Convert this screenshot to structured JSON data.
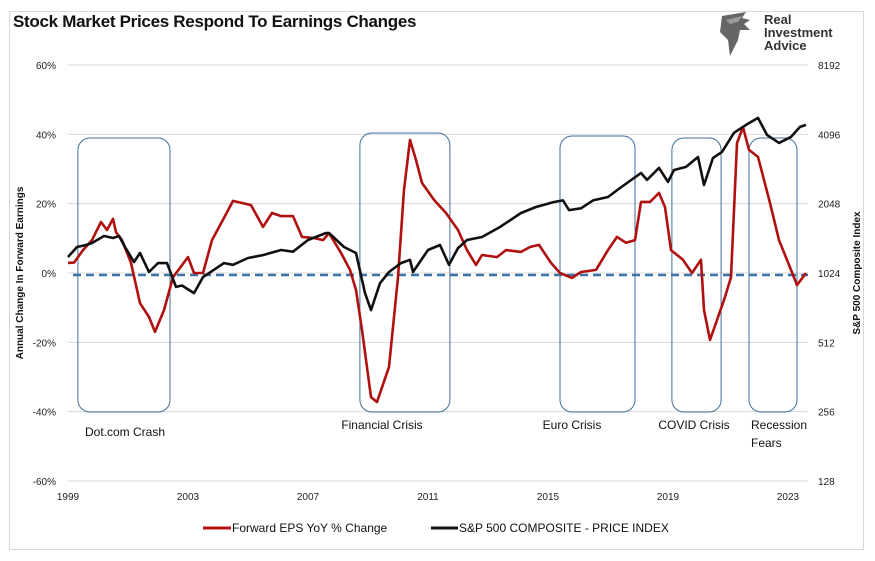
{
  "chart_data": {
    "type": "line",
    "title": "Stock Market Prices Respond To Earnings Changes",
    "ylabel_left": "Annual Change In Forward Earnings",
    "ylabel_right": "S&P 500  Composite Index",
    "xlim": [
      1999,
      2023.67
    ],
    "ylim_left": [
      -60,
      60
    ],
    "ylim_right": [
      128,
      8192
    ],
    "right_axis_scale": "log2",
    "x_ticks": [
      "1999",
      "2003",
      "2007",
      "2011",
      "2015",
      "2019",
      "2023"
    ],
    "y_ticks_left": [
      "60%",
      "40%",
      "20%",
      "0%",
      "-20%",
      "-40%",
      "-60%"
    ],
    "y_ticks_right": [
      "8192",
      "4096",
      "2048",
      "1024",
      "512",
      "256",
      "128"
    ],
    "grid": "horizontal",
    "legend_position": "bottom",
    "zero_line": {
      "value": 0,
      "style": "dashed",
      "color": "#3b72a8"
    },
    "series": [
      {
        "name": "Forward EPS YoY % Change",
        "axis": "left",
        "color": "#b01010",
        "points": [
          [
            1999.0,
            2.9
          ],
          [
            1999.2,
            3
          ],
          [
            1999.5,
            6.6
          ],
          [
            1999.8,
            9.5
          ],
          [
            2000.1,
            14.7
          ],
          [
            2000.3,
            12.4
          ],
          [
            2000.5,
            15.6
          ],
          [
            2000.6,
            11.8
          ],
          [
            2000.8,
            9.5
          ],
          [
            2001.1,
            2.9
          ],
          [
            2001.4,
            -8.7
          ],
          [
            2001.7,
            -12.7
          ],
          [
            2001.9,
            -17
          ],
          [
            2002.2,
            -10.7
          ],
          [
            2002.5,
            -1.2
          ],
          [
            2003.0,
            4.6
          ],
          [
            2003.2,
            0
          ],
          [
            2003.5,
            0
          ],
          [
            2003.8,
            9.5
          ],
          [
            2004.2,
            15.9
          ],
          [
            2004.5,
            20.8
          ],
          [
            2004.8,
            20.2
          ],
          [
            2005.1,
            19.6
          ],
          [
            2005.5,
            13.3
          ],
          [
            2005.8,
            17.3
          ],
          [
            2006.1,
            16.4
          ],
          [
            2006.5,
            16.4
          ],
          [
            2006.8,
            10.4
          ],
          [
            2007.2,
            10.1
          ],
          [
            2007.5,
            9.5
          ],
          [
            2007.7,
            11.5
          ],
          [
            2008.1,
            5.8
          ],
          [
            2008.4,
            0.9
          ],
          [
            2008.6,
            -4.9
          ],
          [
            2008.8,
            -16.4
          ],
          [
            2009.1,
            -35.8
          ],
          [
            2009.3,
            -37.2
          ],
          [
            2009.7,
            -27.1
          ],
          [
            2010.0,
            -1.2
          ],
          [
            2010.2,
            24
          ],
          [
            2010.4,
            38.4
          ],
          [
            2010.6,
            32.6
          ],
          [
            2010.8,
            26
          ],
          [
            2011.2,
            21.1
          ],
          [
            2011.6,
            17.3
          ],
          [
            2012.0,
            12.4
          ],
          [
            2012.3,
            6.6
          ],
          [
            2012.6,
            2.3
          ],
          [
            2012.8,
            5.2
          ],
          [
            2013.3,
            4.6
          ],
          [
            2013.6,
            6.6
          ],
          [
            2014.1,
            6.1
          ],
          [
            2014.4,
            7.5
          ],
          [
            2014.7,
            8.1
          ],
          [
            2015.1,
            2.9
          ],
          [
            2015.4,
            0
          ],
          [
            2015.8,
            -1.4
          ],
          [
            2016.1,
            0.3
          ],
          [
            2016.6,
            0.9
          ],
          [
            2017.0,
            6.6
          ],
          [
            2017.3,
            10.4
          ],
          [
            2017.6,
            8.7
          ],
          [
            2017.9,
            9.5
          ],
          [
            2018.1,
            20.5
          ],
          [
            2018.4,
            20.5
          ],
          [
            2018.7,
            23.1
          ],
          [
            2018.9,
            19
          ],
          [
            2019.1,
            6.6
          ],
          [
            2019.5,
            3.8
          ],
          [
            2019.8,
            0
          ],
          [
            2020.1,
            3.8
          ],
          [
            2020.2,
            -10.7
          ],
          [
            2020.4,
            -19.3
          ],
          [
            2020.6,
            -14.4
          ],
          [
            2020.9,
            -6.9
          ],
          [
            2021.1,
            -1.2
          ],
          [
            2021.3,
            37.5
          ],
          [
            2021.5,
            42.1
          ],
          [
            2021.7,
            35.5
          ],
          [
            2022.0,
            33.5
          ],
          [
            2022.4,
            20.2
          ],
          [
            2022.7,
            9.5
          ],
          [
            2023.1,
            0.9
          ],
          [
            2023.3,
            -3.5
          ],
          [
            2023.6,
            0
          ]
        ]
      },
      {
        "name": "S&P 500 COMPOSITE - PRICE INDEX",
        "axis": "right",
        "color": "#111111",
        "points": [
          [
            1999.0,
            1202
          ],
          [
            1999.3,
            1328
          ],
          [
            1999.6,
            1355
          ],
          [
            1999.8,
            1382
          ],
          [
            2000.2,
            1483
          ],
          [
            2000.5,
            1453
          ],
          [
            2000.7,
            1483
          ],
          [
            2000.9,
            1328
          ],
          [
            2001.2,
            1143
          ],
          [
            2001.4,
            1251
          ],
          [
            2001.7,
            1034
          ],
          [
            2002.0,
            1131
          ],
          [
            2002.3,
            1131
          ],
          [
            2002.6,
            891
          ],
          [
            2002.8,
            904
          ],
          [
            2003.2,
            838
          ],
          [
            2003.5,
            983
          ],
          [
            2004.2,
            1131
          ],
          [
            2004.5,
            1111
          ],
          [
            2005.0,
            1190
          ],
          [
            2005.5,
            1225
          ],
          [
            2006.1,
            1289
          ],
          [
            2006.5,
            1267
          ],
          [
            2007.0,
            1424
          ],
          [
            2007.6,
            1528
          ],
          [
            2007.7,
            1528
          ],
          [
            2008.2,
            1328
          ],
          [
            2008.6,
            1251
          ],
          [
            2008.9,
            838
          ],
          [
            2009.1,
            707
          ],
          [
            2009.4,
            925
          ],
          [
            2009.7,
            1034
          ],
          [
            2010.1,
            1131
          ],
          [
            2010.4,
            1169
          ],
          [
            2010.5,
            1034
          ],
          [
            2011.0,
            1289
          ],
          [
            2011.4,
            1355
          ],
          [
            2011.7,
            1111
          ],
          [
            2012.0,
            1313
          ],
          [
            2012.3,
            1424
          ],
          [
            2012.8,
            1468
          ],
          [
            2013.4,
            1622
          ],
          [
            2014.1,
            1866
          ],
          [
            2014.6,
            1981
          ],
          [
            2015.2,
            2083
          ],
          [
            2015.5,
            2116
          ],
          [
            2015.7,
            1921
          ],
          [
            2016.1,
            1955
          ],
          [
            2016.5,
            2116
          ],
          [
            2017.0,
            2190
          ],
          [
            2017.4,
            2396
          ],
          [
            2018.1,
            2784
          ],
          [
            2018.3,
            2596
          ],
          [
            2018.7,
            2927
          ],
          [
            2019.0,
            2545
          ],
          [
            2019.2,
            2868
          ],
          [
            2019.6,
            2957
          ],
          [
            2020.0,
            3267
          ],
          [
            2020.2,
            2469
          ],
          [
            2020.5,
            3235
          ],
          [
            2020.8,
            3435
          ],
          [
            2021.2,
            4158
          ],
          [
            2021.6,
            4500
          ],
          [
            2022.0,
            4827
          ],
          [
            2022.3,
            4071
          ],
          [
            2022.7,
            3759
          ],
          [
            2023.1,
            3994
          ],
          [
            2023.4,
            4410
          ],
          [
            2023.6,
            4500
          ]
        ]
      }
    ],
    "annotations": [
      {
        "label": "Dot.com Crash",
        "range": [
          1999.33,
          2002.4
        ]
      },
      {
        "label": "Financial Crisis",
        "range": [
          2008.73,
          2011.73
        ]
      },
      {
        "label": "Euro Crisis",
        "range": [
          2015.4,
          2017.9
        ]
      },
      {
        "label": "COVID Crisis",
        "range": [
          2019.13,
          2020.77
        ]
      },
      {
        "label": "Recession Fears",
        "range": [
          2021.7,
          2023.3
        ]
      }
    ]
  },
  "logo": {
    "text_lines": [
      "Real",
      "Investment",
      "Advice"
    ]
  }
}
